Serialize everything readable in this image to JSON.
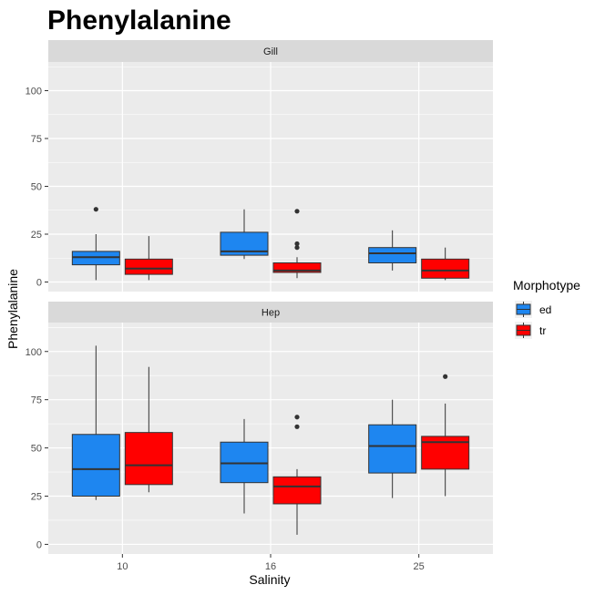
{
  "chart_data": {
    "type": "boxplot",
    "title": "Phenylalanine",
    "xlabel": "Salinity",
    "ylabel": "Phenylalanine",
    "categories": [
      "10",
      "16",
      "25"
    ],
    "ylim": [
      -5,
      115
    ],
    "yticks": [
      0,
      25,
      50,
      75,
      100
    ],
    "grid": true,
    "legend": {
      "title": "Morphotype",
      "position": "right",
      "entries": [
        {
          "name": "ed",
          "color": "#1e86f0"
        },
        {
          "name": "tr",
          "color": "#ff0000"
        }
      ]
    },
    "panels": [
      {
        "label": "Gill",
        "series": [
          {
            "name": "ed",
            "boxes": [
              {
                "category": "10",
                "min": 1,
                "q1": 9,
                "median": 13,
                "q3": 16,
                "max": 25,
                "outliers": [
                  38
                ]
              },
              {
                "category": "16",
                "min": 12,
                "q1": 14,
                "median": 16,
                "q3": 26,
                "max": 38,
                "outliers": []
              },
              {
                "category": "25",
                "min": 6,
                "q1": 10,
                "median": 15,
                "q3": 18,
                "max": 27,
                "outliers": []
              }
            ]
          },
          {
            "name": "tr",
            "boxes": [
              {
                "category": "10",
                "min": 1,
                "q1": 4,
                "median": 7,
                "q3": 12,
                "max": 24,
                "outliers": []
              },
              {
                "category": "16",
                "min": 2,
                "q1": 5,
                "median": 6,
                "q3": 10,
                "max": 13,
                "outliers": [
                  18,
                  20,
                  37
                ]
              },
              {
                "category": "25",
                "min": 1,
                "q1": 2,
                "median": 6,
                "q3": 12,
                "max": 18,
                "outliers": []
              }
            ]
          }
        ]
      },
      {
        "label": "Hep",
        "series": [
          {
            "name": "ed",
            "boxes": [
              {
                "category": "10",
                "min": 23,
                "q1": 25,
                "median": 39,
                "q3": 57,
                "max": 103,
                "outliers": []
              },
              {
                "category": "16",
                "min": 16,
                "q1": 32,
                "median": 42,
                "q3": 53,
                "max": 65,
                "outliers": []
              },
              {
                "category": "25",
                "min": 24,
                "q1": 37,
                "median": 51,
                "q3": 62,
                "max": 75,
                "outliers": []
              }
            ]
          },
          {
            "name": "tr",
            "boxes": [
              {
                "category": "10",
                "min": 27,
                "q1": 31,
                "median": 41,
                "q3": 58,
                "max": 92,
                "outliers": []
              },
              {
                "category": "16",
                "min": 5,
                "q1": 21,
                "median": 30,
                "q3": 35,
                "max": 39,
                "outliers": [
                  61,
                  66
                ]
              },
              {
                "category": "25",
                "min": 25,
                "q1": 39,
                "median": 53,
                "q3": 56,
                "max": 73,
                "outliers": [
                  87
                ]
              }
            ]
          }
        ]
      }
    ]
  }
}
